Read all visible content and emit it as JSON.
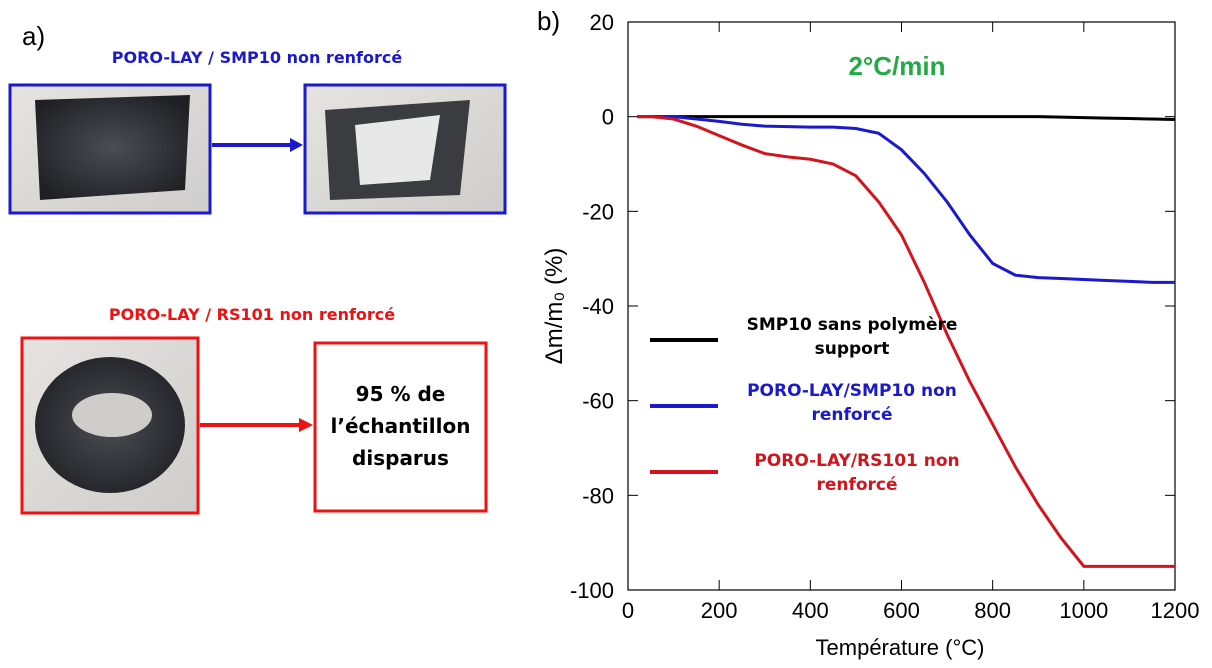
{
  "panel_a": {
    "label": "a)",
    "top_title": "PORO-LAY / SMP10 non renforcé",
    "bottom_title": "PORO-LAY / RS101 non renforcé",
    "box_text": "95 % de l’échantillon disparus"
  },
  "chart_data": {
    "type": "line",
    "panel_label": "b)",
    "annotation": "2°C/min",
    "xlabel": "Température (°C)",
    "ylabel": "Δm/m₀ (%)",
    "x": [
      20,
      50,
      100,
      150,
      200,
      250,
      300,
      350,
      400,
      450,
      500,
      550,
      600,
      650,
      700,
      750,
      800,
      850,
      900,
      950,
      1000,
      1050,
      1100,
      1150,
      1200
    ],
    "series": [
      {
        "name": "SMP10 sans polymère support",
        "color": "#000000",
        "values": [
          0,
          0,
          0,
          0,
          0,
          0,
          0,
          0,
          0,
          0,
          0,
          0,
          0,
          0,
          0,
          0,
          0,
          0,
          0,
          -0.1,
          -0.2,
          -0.3,
          -0.4,
          -0.5,
          -0.6
        ]
      },
      {
        "name": "PORO-LAY/SMP10 non renforcé",
        "color": "#1a1acc",
        "values": [
          0,
          0,
          0,
          -0.5,
          -1,
          -1.6,
          -2,
          -2.1,
          -2.2,
          -2.2,
          -2.5,
          -3.5,
          -7,
          -12,
          -18,
          -25,
          -31,
          -33.5,
          -34,
          -34.2,
          -34.4,
          -34.6,
          -34.8,
          -35,
          -35
        ]
      },
      {
        "name": "PORO-LAY/RS101 non renforcé",
        "color": "#d4141c",
        "values": [
          0,
          0,
          -0.5,
          -2,
          -4,
          -6,
          -7.8,
          -8.5,
          -9,
          -10,
          -12.5,
          -18,
          -25,
          -35,
          -46,
          -56,
          -65,
          -74,
          -82,
          -89,
          -95,
          -95,
          -95,
          -95,
          -95
        ]
      }
    ],
    "xlim": [
      0,
      1200
    ],
    "xticks": [
      0,
      200,
      400,
      600,
      800,
      1000,
      1200
    ],
    "ylim": [
      -100,
      20
    ],
    "yticks": [
      -100,
      -80,
      -60,
      -40,
      -20,
      0,
      20
    ]
  }
}
